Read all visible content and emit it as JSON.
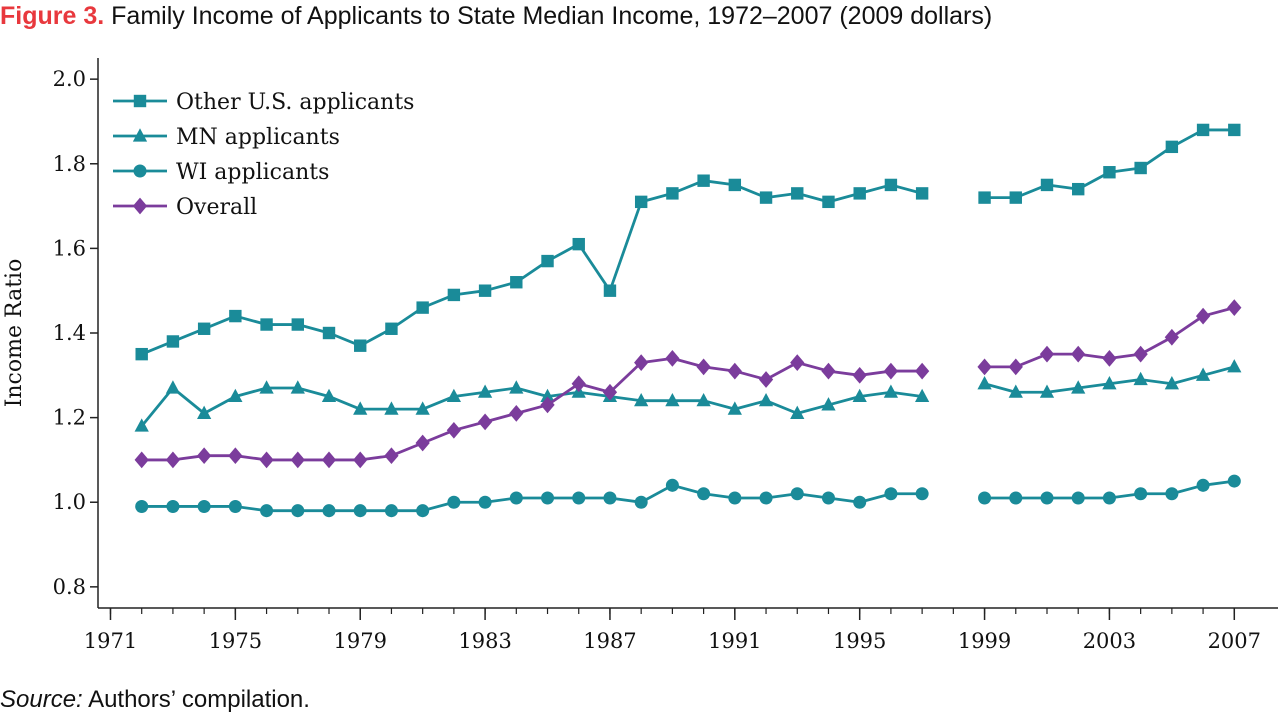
{
  "figure": {
    "label": "Figure 3.",
    "title": "Family Income of Applicants to State Median Income, 1972–2007 (2009 dollars)",
    "source_label": "Source:",
    "source_text": "Authors’ compilation."
  },
  "colors": {
    "teal": "#1a8b99",
    "purple": "#7b3c9c",
    "title_accent": "#e8383d"
  },
  "chart_data": {
    "type": "line",
    "ylabel": "Income Ratio",
    "xlabel": "",
    "ylim": [
      0.75,
      2.05
    ],
    "xlim": [
      1970.6,
      2008.4
    ],
    "x_gap": [
      1997,
      1999
    ],
    "y_ticks": [
      0.8,
      1.0,
      1.2,
      1.4,
      1.6,
      1.8,
      2.0
    ],
    "y_tick_labels": [
      "0.8",
      "1.0",
      "1.2",
      "1.4",
      "1.6",
      "1.8",
      "2.0"
    ],
    "x_ticks": [
      1971,
      1975,
      1979,
      1983,
      1987,
      1991,
      1995,
      1999,
      2003,
      2007
    ],
    "x_tick_labels": [
      "1971",
      "1975",
      "1979",
      "1983",
      "1987",
      "1991",
      "1995",
      "1999",
      "2003",
      "2007"
    ],
    "legend_position": "top-left",
    "grid": false,
    "x": [
      1972,
      1973,
      1974,
      1975,
      1976,
      1977,
      1978,
      1979,
      1980,
      1981,
      1982,
      1983,
      1984,
      1985,
      1986,
      1987,
      1988,
      1989,
      1990,
      1991,
      1992,
      1993,
      1994,
      1995,
      1996,
      1997,
      1999,
      2000,
      2001,
      2002,
      2003,
      2004,
      2005,
      2006,
      2007
    ],
    "series": [
      {
        "name": "Other U.S. applicants",
        "marker": "square",
        "color": "#1a8b99",
        "values": [
          1.35,
          1.38,
          1.41,
          1.44,
          1.42,
          1.42,
          1.4,
          1.37,
          1.41,
          1.46,
          1.49,
          1.5,
          1.52,
          1.57,
          1.61,
          1.5,
          1.71,
          1.73,
          1.76,
          1.75,
          1.72,
          1.73,
          1.71,
          1.73,
          1.75,
          1.73,
          1.72,
          1.72,
          1.75,
          1.74,
          1.78,
          1.79,
          1.84,
          1.88,
          1.88
        ]
      },
      {
        "name": "MN applicants",
        "marker": "triangle",
        "color": "#1a8b99",
        "values": [
          1.18,
          1.27,
          1.21,
          1.25,
          1.27,
          1.27,
          1.25,
          1.22,
          1.22,
          1.22,
          1.25,
          1.26,
          1.27,
          1.25,
          1.26,
          1.25,
          1.24,
          1.24,
          1.24,
          1.22,
          1.24,
          1.21,
          1.23,
          1.25,
          1.26,
          1.25,
          1.28,
          1.26,
          1.26,
          1.27,
          1.28,
          1.29,
          1.28,
          1.3,
          1.32
        ]
      },
      {
        "name": "WI applicants",
        "marker": "circle",
        "color": "#1a8b99",
        "values": [
          0.99,
          0.99,
          0.99,
          0.99,
          0.98,
          0.98,
          0.98,
          0.98,
          0.98,
          0.98,
          1.0,
          1.0,
          1.01,
          1.01,
          1.01,
          1.01,
          1.0,
          1.04,
          1.02,
          1.01,
          1.01,
          1.02,
          1.01,
          1.0,
          1.02,
          1.02,
          1.01,
          1.01,
          1.01,
          1.01,
          1.01,
          1.02,
          1.02,
          1.04,
          1.05
        ]
      },
      {
        "name": "Overall",
        "marker": "diamond",
        "color": "#7b3c9c",
        "values": [
          1.1,
          1.1,
          1.11,
          1.11,
          1.1,
          1.1,
          1.1,
          1.1,
          1.11,
          1.14,
          1.17,
          1.19,
          1.21,
          1.23,
          1.28,
          1.26,
          1.33,
          1.34,
          1.32,
          1.31,
          1.29,
          1.33,
          1.31,
          1.3,
          1.31,
          1.31,
          1.32,
          1.32,
          1.35,
          1.35,
          1.34,
          1.35,
          1.39,
          1.44,
          1.46
        ]
      }
    ]
  }
}
